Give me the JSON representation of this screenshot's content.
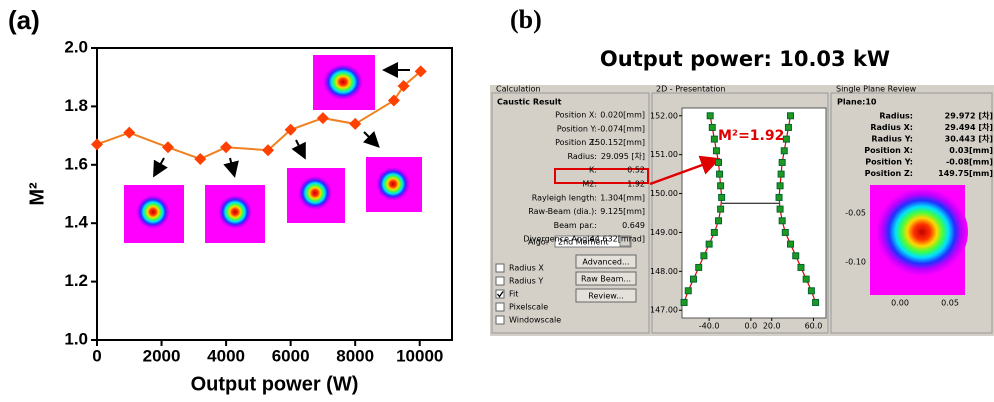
{
  "chart_data": [
    {
      "type": "line",
      "x_label": "Output power (W)",
      "y_label": "M²",
      "x": [
        0,
        1000,
        2200,
        3200,
        4000,
        5300,
        6000,
        7000,
        8000,
        9200,
        9500,
        10030
      ],
      "values": [
        1.67,
        1.71,
        1.66,
        1.62,
        1.66,
        1.65,
        1.72,
        1.76,
        1.74,
        1.82,
        1.87,
        1.92
      ],
      "color": "#ff4000",
      "line_color": "#f08020",
      "xlim": [
        0,
        11000
      ],
      "xticks": [
        0,
        2000,
        4000,
        6000,
        8000,
        10000
      ],
      "ylim": [
        1,
        2
      ],
      "yticks": [
        {
          "value": 1,
          "label": "1.0"
        },
        1.2,
        1.4,
        1.6,
        1.8,
        {
          "value": 2,
          "label": "2.0"
        }
      ]
    },
    {
      "type": "scatter",
      "title": "2D - Presentation",
      "annotation": "M²=1.92",
      "series": [
        {
          "color": "#1f9a1f",
          "x": [
            -64,
            -60,
            -55,
            -50,
            -45,
            -40,
            -35,
            -31,
            -29,
            -28,
            -29,
            -30,
            -31,
            -33,
            -35,
            -37,
            -39
          ],
          "values": [
            147.2,
            147.5,
            147.8,
            148.1,
            148.4,
            148.7,
            149.0,
            149.3,
            149.6,
            149.9,
            150.2,
            150.5,
            150.8,
            151.1,
            151.4,
            151.7,
            152.0
          ]
        },
        {
          "color": "#1f9a1f",
          "x": [
            62,
            58,
            53,
            48,
            43,
            38,
            33,
            30,
            28,
            27,
            28,
            29,
            30,
            32,
            34,
            36,
            38
          ],
          "values": [
            147.2,
            147.5,
            147.8,
            148.1,
            148.4,
            148.7,
            149.0,
            149.3,
            149.6,
            149.9,
            150.2,
            150.5,
            150.8,
            151.1,
            151.4,
            151.7,
            152.0
          ]
        }
      ],
      "fit_color": "#e00000",
      "xlim": [
        -66,
        72
      ],
      "xticks": [
        {
          "value": -40,
          "label": "-40.0"
        },
        {
          "value": 0,
          "label": "0.0"
        },
        {
          "value": 20,
          "label": "20.0"
        },
        {
          "value": 60,
          "label": "60.0"
        }
      ],
      "ylim": [
        146.8,
        152.2
      ],
      "yticks": [
        {
          "value": 147,
          "label": "147.00"
        },
        {
          "value": 148,
          "label": "148.00"
        },
        {
          "value": 149,
          "label": "149.00"
        },
        {
          "value": 150,
          "label": "150.00"
        },
        {
          "value": 151,
          "label": "151.00"
        },
        {
          "value": 152,
          "label": "152.00"
        }
      ]
    }
  ],
  "panel_labels": [
    "(a)",
    "(b)"
  ],
  "screenshot": {
    "heading": "Output power:  10.03 kW",
    "calculation": {
      "title": "Calculation",
      "section": "Caustic Result",
      "rows": [
        [
          "Position X:",
          "0.020[mm]"
        ],
        [
          "Position Y:",
          "-0.074[mm]"
        ],
        [
          "Position Z:",
          "150.152[mm]"
        ],
        [
          "Radius:",
          "29.095 [차]"
        ],
        [
          "K:",
          "0.52"
        ],
        [
          "M2:",
          "1.92"
        ],
        [
          "Rayleigh length:",
          "1.304[mm]"
        ],
        [
          "Raw-Beam (dia.):",
          "9.125[mm]"
        ],
        [
          "Beam par.:",
          "0.649"
        ],
        [
          "Divergence Angle:",
          "44.632[mrad]"
        ]
      ],
      "algo_label": "Algo:",
      "algo_value": "2nd Moment",
      "checkboxes": [
        "Radius X",
        "Radius Y",
        "Fit",
        "Pixelscale",
        "Windowscale"
      ],
      "buttons": [
        "Advanced...",
        "Raw Beam...",
        "Review..."
      ]
    },
    "review": {
      "title": "Single Plane Review",
      "section": "Plane:10",
      "rows": [
        [
          "Radius:",
          "29.972 [차]"
        ],
        [
          "Radius X:",
          "29.494 [차]"
        ],
        [
          "Radius Y:",
          "30.443 [차]"
        ],
        [
          "Position X:",
          "0.03[mm]"
        ],
        [
          "Position Y:",
          "-0.08[mm]"
        ],
        [
          "Position Z:",
          "149.75[mm]"
        ]
      ],
      "y_ticks": [
        "-0.05",
        "-0.10"
      ],
      "x_ticks": [
        "0.00",
        "0.05"
      ]
    }
  }
}
